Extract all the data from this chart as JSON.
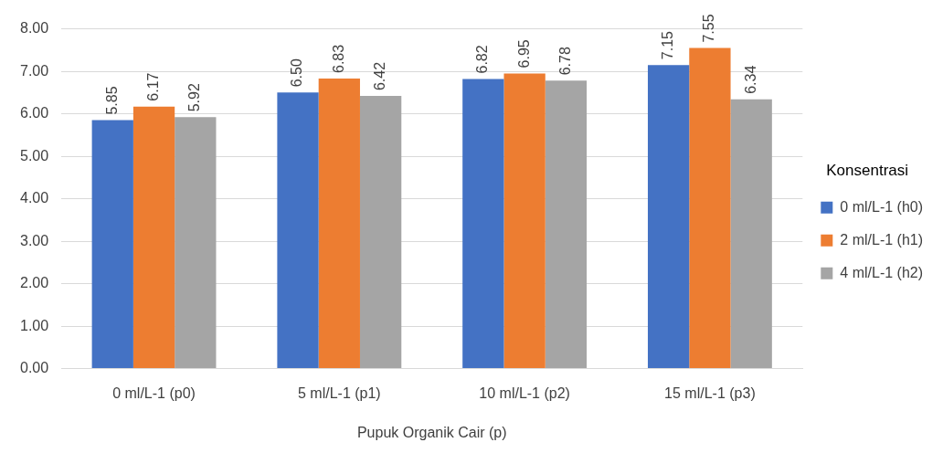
{
  "chart_data": {
    "type": "bar",
    "xlabel": "Pupuk Organik Cair (p)",
    "legend_title": "Konsentrasi",
    "categories": [
      "0 ml/L-1 (p0)",
      "5 ml/L-1 (p1)",
      "10 ml/L-1 (p2)",
      "15 ml/L-1 (p3)"
    ],
    "series": [
      {
        "name": "0 ml/L-1 (h0)",
        "color": "#4472c4",
        "values": [
          5.85,
          6.5,
          6.82,
          7.15
        ],
        "value_labels": [
          "5.85",
          "6.50",
          "6.82",
          "7.15"
        ]
      },
      {
        "name": "2 ml/L-1 (h1)",
        "color": "#ed7d31",
        "values": [
          6.17,
          6.83,
          6.95,
          7.55
        ],
        "value_labels": [
          "6.17",
          "6.83",
          "6.95",
          "7.55"
        ]
      },
      {
        "name": "4 ml/L-1 (h2)",
        "color": "#a5a5a5",
        "values": [
          5.92,
          6.42,
          6.78,
          6.34
        ],
        "value_labels": [
          "5.92",
          "6.42",
          "6.78",
          "6.34"
        ]
      }
    ],
    "ylim": [
      0,
      8
    ],
    "yticks": [
      {
        "value": 0,
        "label": "0.00"
      },
      {
        "value": 1,
        "label": "1.00"
      },
      {
        "value": 2,
        "label": "2.00"
      },
      {
        "value": 3,
        "label": "3.00"
      },
      {
        "value": 4,
        "label": "4.00"
      },
      {
        "value": 5,
        "label": "5.00"
      },
      {
        "value": 6,
        "label": "6.00"
      },
      {
        "value": 7,
        "label": "7.00"
      },
      {
        "value": 8,
        "label": "8.00"
      }
    ],
    "grid": "y",
    "legend": "right"
  }
}
